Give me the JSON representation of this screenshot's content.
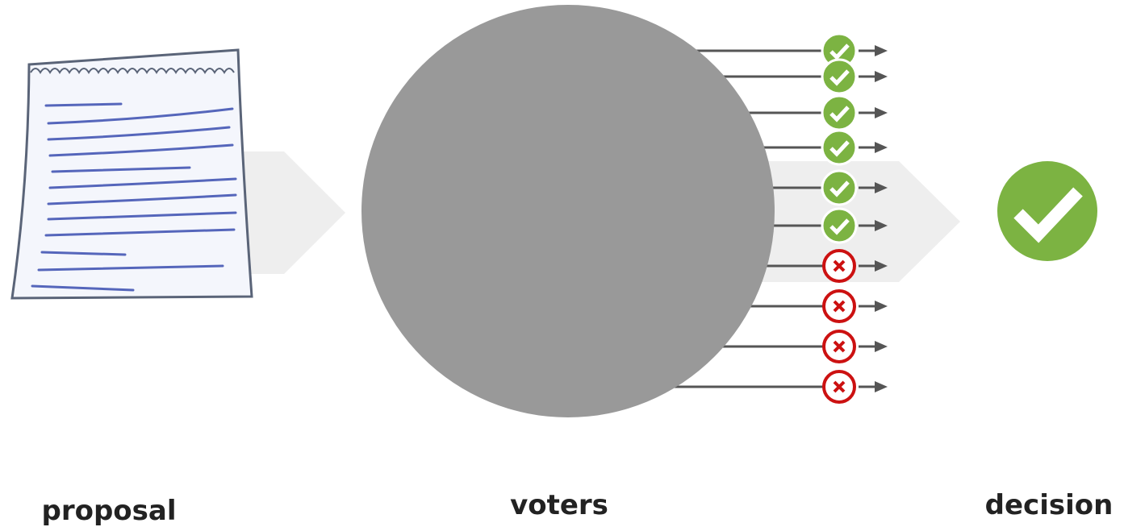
{
  "labels": {
    "proposal": "proposal",
    "voters": "voters",
    "decision": "decision"
  }
}
